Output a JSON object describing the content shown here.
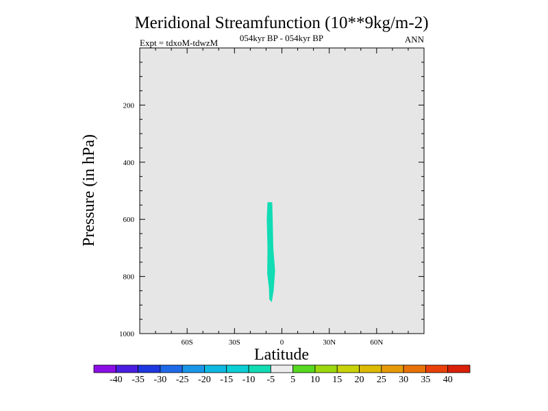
{
  "chart_data": {
    "type": "heatmap",
    "title": "Meridional Streamfunction (10**9kg/m-2)",
    "subtitle": "054kyr BP - 054kyr BP",
    "left_label": "Expt = tdxoM-tdwzM",
    "right_label": "ANN",
    "xlabel": "Latitude",
    "ylabel": "Pressure (in hPa)",
    "xlim": [
      -90,
      90
    ],
    "ylim": [
      1000,
      0
    ],
    "x_ticks": [
      {
        "value": -60,
        "label": "60S"
      },
      {
        "value": -30,
        "label": "30S"
      },
      {
        "value": 0,
        "label": "0"
      },
      {
        "value": 30,
        "label": "30N"
      },
      {
        "value": 60,
        "label": "60N"
      }
    ],
    "y_ticks": [
      {
        "value": 200,
        "label": "200"
      },
      {
        "value": 400,
        "label": "400"
      },
      {
        "value": 600,
        "label": "600"
      },
      {
        "value": 800,
        "label": "800"
      },
      {
        "value": 1000,
        "label": "1000"
      }
    ],
    "background_color": "#e6e6e6",
    "regions": [
      {
        "name": "-10 to -5",
        "color": "#11dcb4",
        "polygon": [
          [
            -9.1,
            540
          ],
          [
            -6.1,
            540
          ],
          [
            -5.8,
            600
          ],
          [
            -5.4,
            700
          ],
          [
            -4.3,
            780
          ],
          [
            -5.2,
            850
          ],
          [
            -6.4,
            890
          ],
          [
            -8.0,
            880
          ],
          [
            -8.2,
            840
          ],
          [
            -9.3,
            790
          ],
          [
            -9.1,
            700
          ],
          [
            -9.6,
            600
          ]
        ]
      }
    ],
    "colorbar": {
      "labels": [
        "-40",
        "-35",
        "-30",
        "-25",
        "-20",
        "-15",
        "-10",
        "-5",
        "5",
        "10",
        "15",
        "20",
        "25",
        "30",
        "35",
        "40"
      ],
      "colors": [
        "#8a0ee6",
        "#4a1ee0",
        "#1e38e0",
        "#1e6ae8",
        "#1a96e8",
        "#0eb8e0",
        "#0ccfd5",
        "#11dcb4",
        "#ececec",
        "#58d820",
        "#9cd80e",
        "#c8d208",
        "#ddba04",
        "#e69a08",
        "#e87208",
        "#e84008",
        "#da2008"
      ]
    }
  }
}
